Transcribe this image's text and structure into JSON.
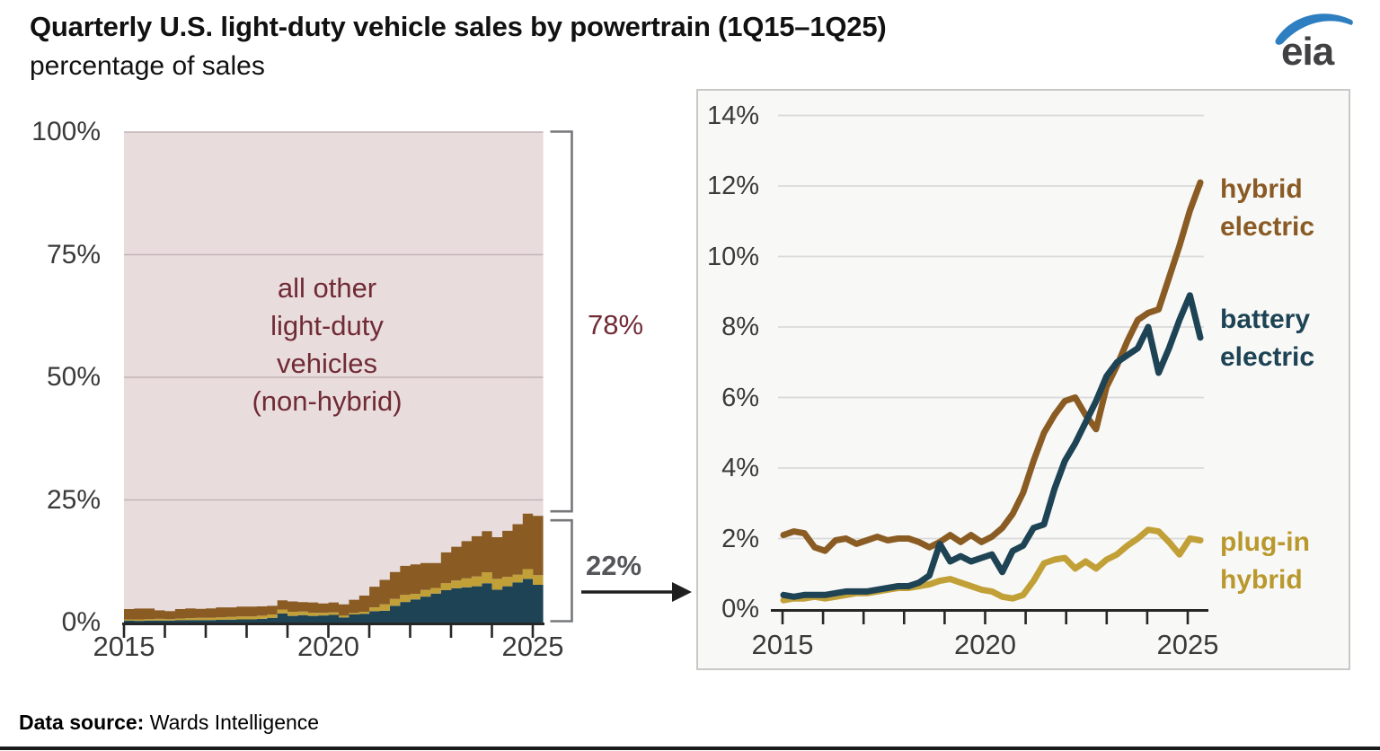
{
  "header": {
    "title": "Quarterly U.S. light-duty vehicle sales by powertrain (1Q15–1Q25)",
    "subtitle": "percentage of sales",
    "logo_text": "eia",
    "logo_colors": {
      "swoosh": "#2e7fc1",
      "text": "#414042"
    }
  },
  "footer": {
    "source_label": "Data source:",
    "source_value": " Wards Intelligence"
  },
  "chart_data": {
    "frequency": "quarterly",
    "x_range_label": "1Q15–1Q25",
    "years_start": 2015,
    "years_end": 2025,
    "x_tick_labels": [
      "2015",
      "2020",
      "2025"
    ],
    "series": [
      {
        "name": "battery electric",
        "color": "#1d4355",
        "values": [
          0.4,
          0.35,
          0.4,
          0.4,
          0.4,
          0.45,
          0.5,
          0.5,
          0.5,
          0.55,
          0.6,
          0.65,
          0.65,
          0.75,
          0.95,
          1.85,
          1.35,
          1.5,
          1.35,
          1.45,
          1.55,
          1.05,
          1.65,
          1.8,
          2.3,
          2.4,
          3.4,
          4.2,
          4.7,
          5.3,
          5.9,
          6.6,
          7.0,
          7.2,
          7.4,
          8.0,
          6.7,
          7.4,
          8.2,
          8.9,
          7.7
        ]
      },
      {
        "name": "plug-in hybrid",
        "color": "#c2a038",
        "values": [
          0.25,
          0.3,
          0.3,
          0.35,
          0.3,
          0.35,
          0.4,
          0.45,
          0.45,
          0.5,
          0.55,
          0.6,
          0.6,
          0.65,
          0.7,
          0.8,
          0.85,
          0.75,
          0.65,
          0.55,
          0.5,
          0.35,
          0.3,
          0.4,
          0.8,
          1.3,
          1.4,
          1.45,
          1.15,
          1.35,
          1.15,
          1.4,
          1.55,
          1.8,
          2.0,
          2.25,
          2.2,
          1.9,
          1.55,
          2.0,
          1.95
        ]
      },
      {
        "name": "hybrid electric",
        "color": "#8a5c24",
        "values": [
          2.1,
          2.2,
          2.15,
          1.75,
          1.65,
          1.95,
          2.0,
          1.85,
          1.95,
          2.05,
          1.95,
          2.0,
          2.0,
          1.9,
          1.75,
          1.9,
          2.1,
          1.9,
          2.1,
          1.9,
          2.05,
          2.3,
          2.7,
          3.3,
          4.2,
          5.0,
          5.5,
          5.9,
          6.0,
          5.5,
          5.1,
          6.3,
          6.9,
          7.6,
          8.2,
          8.4,
          8.5,
          9.4,
          10.3,
          11.3,
          12.1
        ]
      }
    ],
    "left_chart": {
      "type": "area",
      "subtype": "stacked-quarterly-steps",
      "ylim": [
        0,
        100
      ],
      "y_tick_labels": [
        "100%",
        "75%",
        "50%",
        "25%",
        "0%"
      ],
      "y_tick_values": [
        100,
        75,
        50,
        25,
        0
      ],
      "remainder": {
        "label": "all other\nlight-duty\nvehicles\n(non-hybrid)",
        "color": "#e9dcdd",
        "share_label": "78%"
      },
      "electrified_share_label": "22%",
      "grid_color": "#c4b5b7"
    },
    "right_chart": {
      "type": "line",
      "ylim": [
        0,
        14
      ],
      "y_tick_labels": [
        "14%",
        "12%",
        "10%",
        "8%",
        "6%",
        "4%",
        "2%",
        "0%"
      ],
      "y_tick_values": [
        14,
        12,
        10,
        8,
        6,
        4,
        2,
        0
      ],
      "grid_color": "#dadada",
      "legend": [
        {
          "label": "hybrid\nelectric",
          "series": "hybrid electric",
          "color": "#8a5a25"
        },
        {
          "label": "battery\nelectric",
          "series": "battery electric",
          "color": "#1d4355"
        },
        {
          "label": "plug-in\nhybrid",
          "series": "plug-in hybrid",
          "color": "#b9982e"
        }
      ]
    }
  }
}
